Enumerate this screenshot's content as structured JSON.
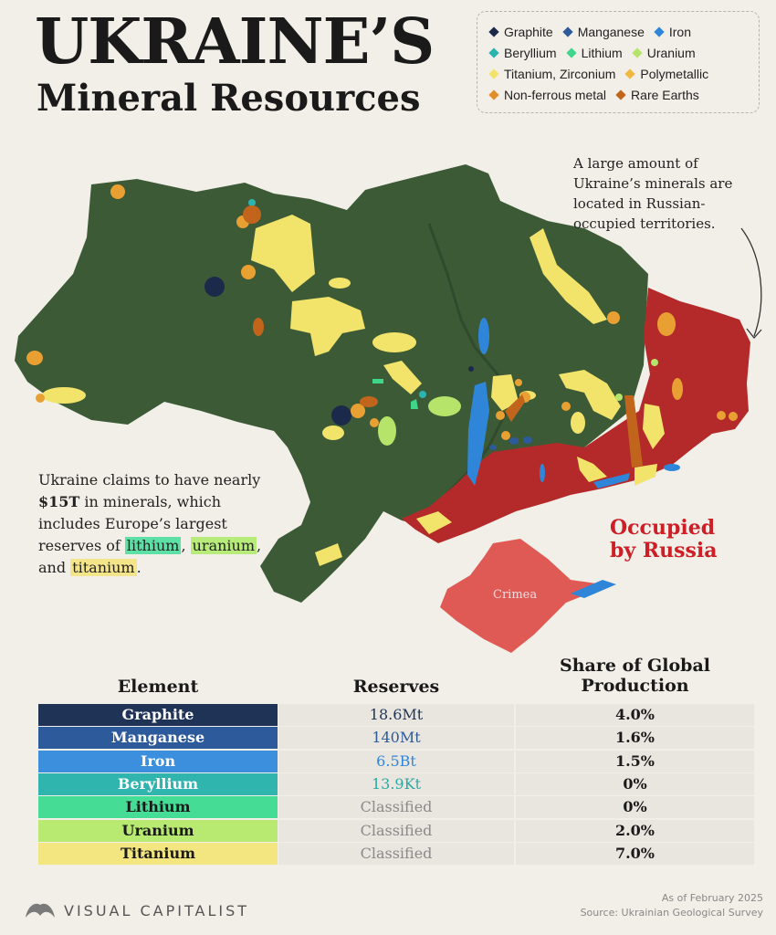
{
  "title": {
    "line1": "UKRAINE’S",
    "line2": "Mineral Resources"
  },
  "legend": {
    "rows": [
      [
        {
          "label": "Graphite",
          "color": "#1b2a4a"
        },
        {
          "label": "Manganese",
          "color": "#2c5a9a"
        },
        {
          "label": "Iron",
          "color": "#2f86d8"
        }
      ],
      [
        {
          "label": "Beryllium",
          "color": "#2bb3b0"
        },
        {
          "label": "Lithium",
          "color": "#3fd68c"
        },
        {
          "label": "Uranium",
          "color": "#b6e46a"
        }
      ],
      [
        {
          "label": "Titanium, Zirconium",
          "color": "#f2e46a"
        },
        {
          "label": "Polymetallic",
          "color": "#f0b840"
        }
      ],
      [
        {
          "label": "Non-ferrous metal",
          "color": "#e08f2a"
        },
        {
          "label": "Rare Earths",
          "color": "#c2651c"
        }
      ]
    ]
  },
  "map": {
    "colors": {
      "land": "#3d5a37",
      "occupied": "#b42a2a",
      "crimea": "#e05a55"
    },
    "crimea_label": "Crimea",
    "occupied_label": [
      "Occupied",
      "by Russia"
    ]
  },
  "notes": {
    "top": "A large amount of Ukraine’s minerals are located in Russian-occupied territories.",
    "left_prefix": "Ukraine claims to have nearly ",
    "left_value": "$15T",
    "left_middle": " in minerals, which includes Europe’s largest reserves of ",
    "left_lithium": "lithium",
    "left_sep1": ", ",
    "left_uranium": "uranium",
    "left_sep2": ", and ",
    "left_titanium": "titanium",
    "left_end": "."
  },
  "table": {
    "headers": {
      "element": "Element",
      "reserves": "Reserves",
      "share_line1": "Share of Global",
      "share_line2": "Production"
    },
    "rows": [
      {
        "element": "Graphite",
        "reserves": "18.6Mt",
        "share": "4.0%",
        "bg": "#1f3357",
        "fg": "#ffffff",
        "rescolor": "#1f3357"
      },
      {
        "element": "Manganese",
        "reserves": "140Mt",
        "share": "1.6%",
        "bg": "#2c5a9a",
        "fg": "#ffffff",
        "rescolor": "#2c5a9a"
      },
      {
        "element": "Iron",
        "reserves": "6.5Bt",
        "share": "1.5%",
        "bg": "#3b8fdc",
        "fg": "#ffffff",
        "rescolor": "#2f86d8"
      },
      {
        "element": "Beryllium",
        "reserves": "13.9Kt",
        "share": "0%",
        "bg": "#2fb5ae",
        "fg": "#ffffff",
        "rescolor": "#2aa8a5"
      },
      {
        "element": "Lithium",
        "reserves": "Classified",
        "share": "0%",
        "bg": "#45dd96",
        "fg": "#1a1a1a",
        "rescolor": "#8a8a8a"
      },
      {
        "element": "Uranium",
        "reserves": "Classified",
        "share": "2.0%",
        "bg": "#b8ea72",
        "fg": "#1a1a1a",
        "rescolor": "#8a8a8a"
      },
      {
        "element": "Titanium",
        "reserves": "Classified",
        "share": "7.0%",
        "bg": "#f3e680",
        "fg": "#1a1a1a",
        "rescolor": "#8a8a8a"
      }
    ]
  },
  "footer": {
    "date": "As of February 2025",
    "source": "Source: Ukrainian Geological Survey"
  },
  "brand": {
    "name": "VISUAL CAPITALIST",
    "icon": "visual-capitalist-logo-icon"
  }
}
